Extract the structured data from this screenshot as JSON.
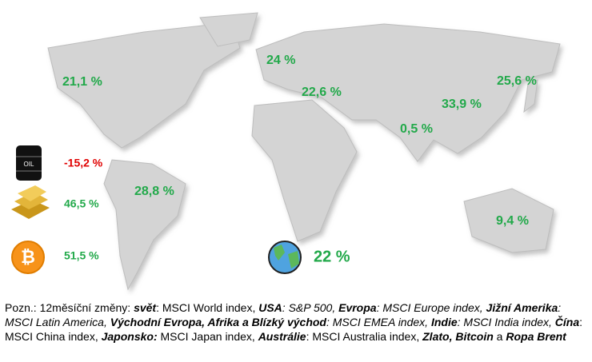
{
  "map_labels": [
    "21,1 %",
    "24 %",
    "22,6 %",
    "25,6 %",
    "33,9 %",
    "0,5 %",
    "28,8 %",
    "9,4 %"
  ],
  "world": "22 %",
  "assets": [
    "-15,2 %",
    "46,5 %",
    "51,5 %"
  ],
  "oil_label": "OIL",
  "note": [
    "Pozn.: 12měsíční změny: ",
    "svět",
    ": MSCI World index, ",
    "USA",
    ": S&P 500, ",
    "Evropa",
    ": MSCI Europe index, ",
    "Jižní Amerika",
    ": MSCI Latin America, ",
    "Východní Evropa, Afrika a Blízký východ",
    ": MSCI EMEA index, ",
    "Indie",
    ": MSCI India index, ",
    "Čína",
    ": MSCI China index, ",
    "Japonsko:",
    " MSCI Japan index, ",
    "Austrálie",
    ": MSCI Australia index, ",
    "Zlato, Bitcoin",
    " a ",
    "Ropa Brent"
  ]
}
